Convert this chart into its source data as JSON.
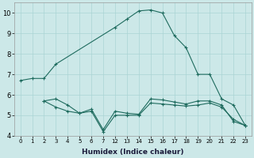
{
  "xlabel": "Humidex (Indice chaleur)",
  "background_color": "#cce8e8",
  "line_color": "#1e6b5e",
  "grid_color": "#aad4d4",
  "ylim": [
    4,
    10.5
  ],
  "yticks": [
    4,
    5,
    6,
    7,
    8,
    9,
    10
  ],
  "xlabels": [
    "0",
    "1",
    "2",
    "3",
    "4",
    "5",
    "6",
    "7",
    "12",
    "13",
    "14",
    "15",
    "16",
    "17",
    "18",
    "19",
    "20",
    "21",
    "22",
    "23"
  ],
  "curves": [
    {
      "xi": [
        0,
        1,
        2,
        3,
        8,
        9,
        10,
        11,
        12,
        13,
        14,
        15,
        16,
        17,
        18,
        19
      ],
      "y": [
        6.7,
        6.8,
        6.8,
        7.5,
        9.3,
        9.7,
        10.1,
        10.15,
        10.0,
        8.9,
        8.3,
        7.0,
        7.0,
        5.8,
        5.5,
        4.5
      ]
    },
    {
      "xi": [
        2,
        3,
        4,
        5,
        6,
        7,
        8,
        9,
        10,
        11,
        12,
        13,
        14,
        15,
        16,
        17,
        18,
        19
      ],
      "y": [
        5.7,
        5.8,
        5.5,
        5.1,
        5.3,
        4.3,
        5.2,
        5.1,
        5.05,
        5.8,
        5.75,
        5.65,
        5.55,
        5.7,
        5.7,
        5.5,
        4.7,
        4.5
      ]
    },
    {
      "xi": [
        2,
        3,
        4,
        5,
        6,
        7,
        8,
        9,
        10,
        11,
        12,
        13,
        14,
        15,
        16,
        17,
        18,
        19
      ],
      "y": [
        5.7,
        5.4,
        5.2,
        5.1,
        5.2,
        4.2,
        5.0,
        5.0,
        5.0,
        5.6,
        5.55,
        5.5,
        5.45,
        5.5,
        5.6,
        5.4,
        4.8,
        4.5
      ]
    }
  ]
}
